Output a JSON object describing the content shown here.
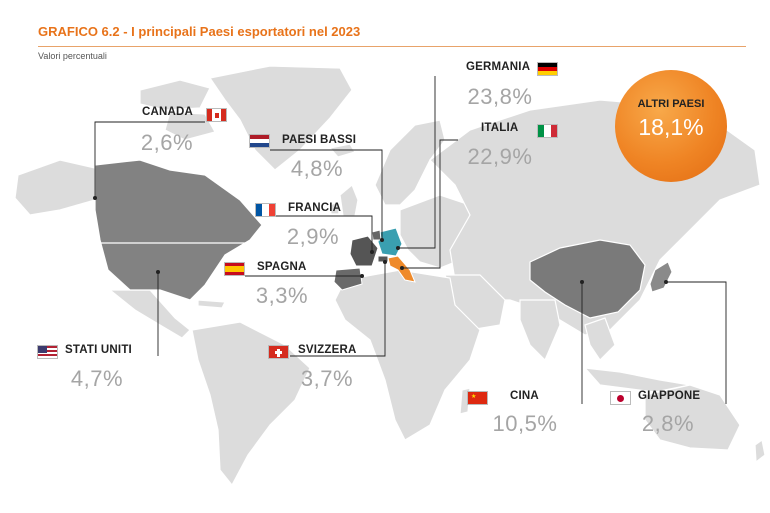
{
  "header": {
    "title": "GRAFICO 6.2 - I principali Paesi esportatori nel 2023",
    "subtitle": "Valori percentuali"
  },
  "colors": {
    "accent": "#e8731a",
    "land": "#dcdcdc",
    "highlight": "#7a7a7a",
    "germany": "#3a9fb0",
    "italy": "#ef8a2a",
    "value_text": "#a5a5a5"
  },
  "countries": [
    {
      "key": "canada",
      "label": "CANADA",
      "value": "2,6%",
      "flag_icon": "canada-flag-icon"
    },
    {
      "key": "paesi_bassi",
      "label": "PAESI BASSI",
      "value": "4,8%",
      "flag_icon": "netherlands-flag-icon"
    },
    {
      "key": "francia",
      "label": "FRANCIA",
      "value": "2,9%",
      "flag_icon": "france-flag-icon"
    },
    {
      "key": "spagna",
      "label": "SPAGNA",
      "value": "3,3%",
      "flag_icon": "spain-flag-icon"
    },
    {
      "key": "stati_uniti",
      "label": "STATI UNITI",
      "value": "4,7%",
      "flag_icon": "usa-flag-icon"
    },
    {
      "key": "svizzera",
      "label": "SVIZZERA",
      "value": "3,7%",
      "flag_icon": "switzerland-flag-icon"
    },
    {
      "key": "germania",
      "label": "GERMANIA",
      "value": "23,8%",
      "flag_icon": "germany-flag-icon"
    },
    {
      "key": "italia",
      "label": "ITALIA",
      "value": "22,9%",
      "flag_icon": "italy-flag-icon"
    },
    {
      "key": "cina",
      "label": "CINA",
      "value": "10,5%",
      "flag_icon": "china-flag-icon"
    },
    {
      "key": "giappone",
      "label": "GIAPPONE",
      "value": "2,8%",
      "flag_icon": "japan-flag-icon"
    }
  ],
  "others": {
    "label": "ALTRI PAESI",
    "value": "18,1%"
  }
}
